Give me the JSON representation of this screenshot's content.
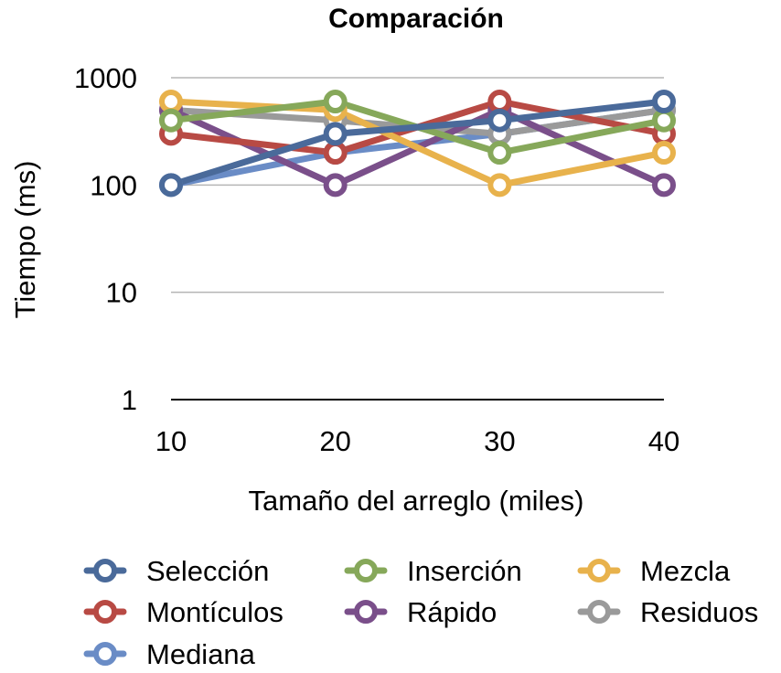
{
  "chart_data": {
    "type": "line",
    "title": "Comparación",
    "xlabel": "Tamaño del arreglo (miles)",
    "ylabel": "Tiempo (ms)",
    "yscale": "log",
    "ylim": [
      1,
      1000
    ],
    "grid": true,
    "legend_position": "bottom",
    "categories": [
      "10",
      "20",
      "30",
      "40"
    ],
    "y_ticks": [
      "1",
      "10",
      "100",
      "1000"
    ],
    "series": [
      {
        "name": "Selección",
        "color": "#4a6a9a",
        "values": [
          100,
          300,
          400,
          600
        ]
      },
      {
        "name": "Inserción",
        "color": "#86a85a",
        "values": [
          400,
          600,
          200,
          400
        ]
      },
      {
        "name": "Mezcla",
        "color": "#e8b24c",
        "values": [
          600,
          500,
          100,
          200
        ]
      },
      {
        "name": "Montículos",
        "color": "#b84a44",
        "values": [
          300,
          200,
          600,
          300
        ]
      },
      {
        "name": "Rápido",
        "color": "#7a4f8a",
        "values": [
          500,
          100,
          500,
          100
        ]
      },
      {
        "name": "Residuos",
        "color": "#9a9a9a",
        "values": [
          500,
          400,
          300,
          500
        ]
      },
      {
        "name": "Mediana",
        "color": "#6a8cc6",
        "values": [
          100,
          200,
          300,
          500
        ]
      }
    ]
  }
}
